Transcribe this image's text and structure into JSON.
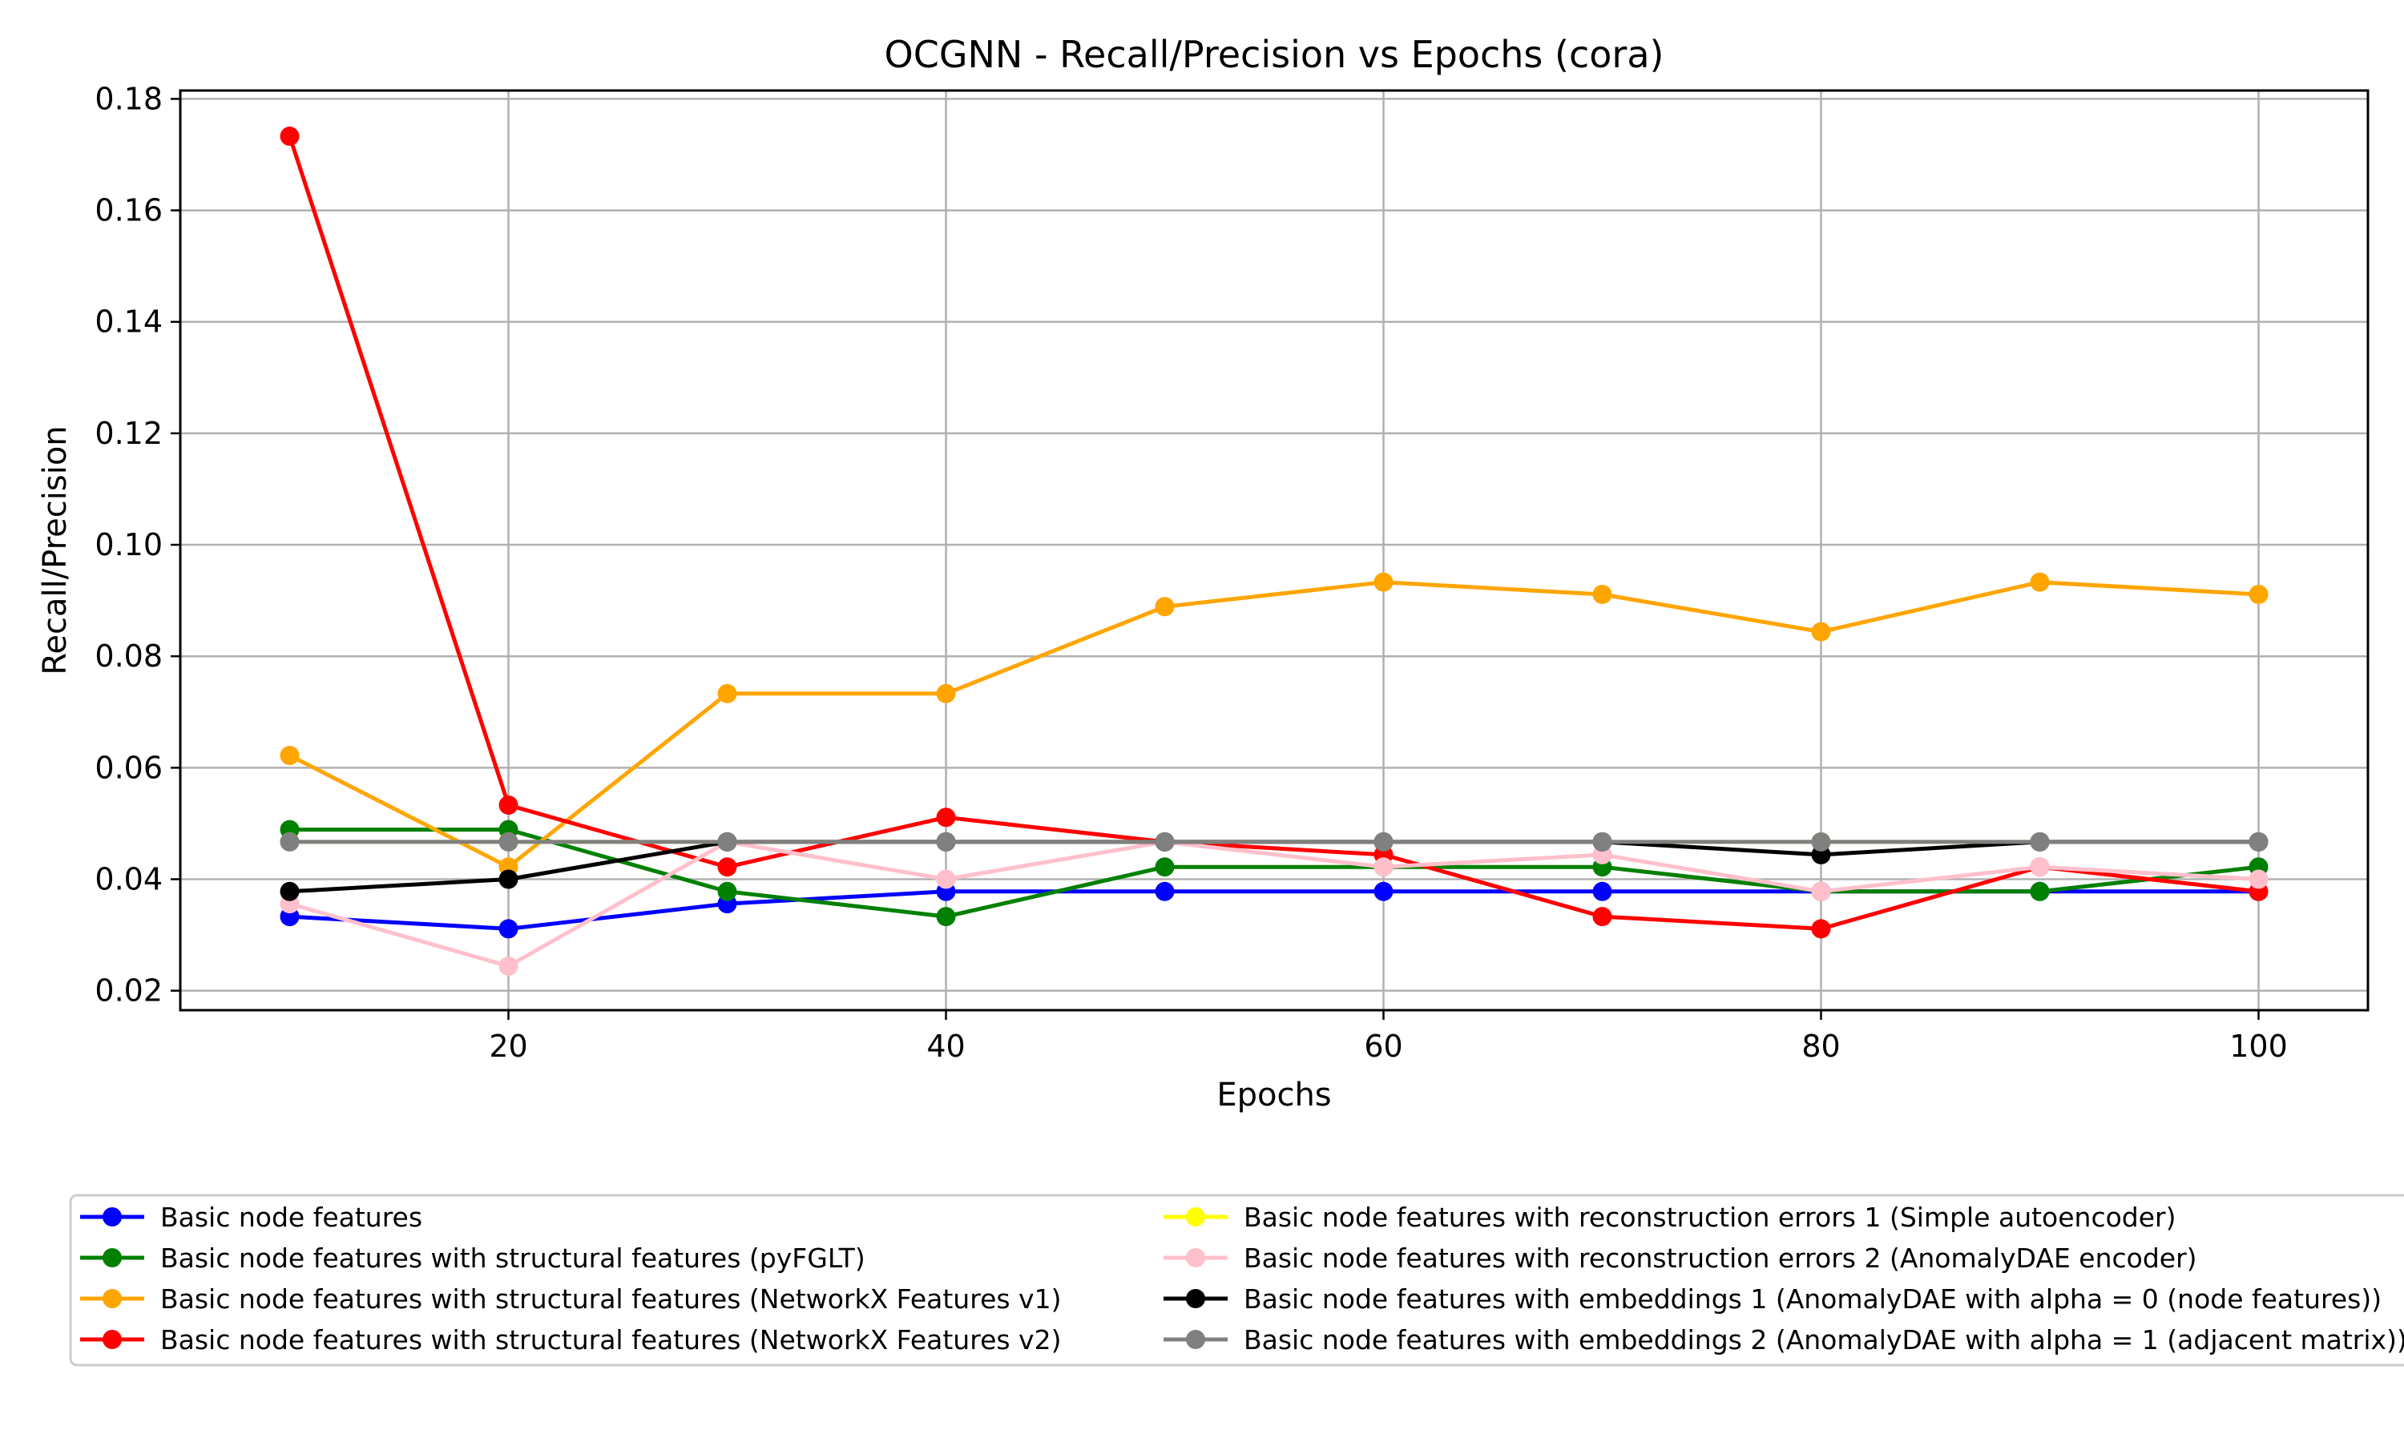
{
  "chart_data": {
    "type": "line",
    "title": "OCGNN - Recall/Precision vs Epochs (cora)",
    "xlabel": "Epochs",
    "ylabel": "Recall/Precision",
    "xlim": [
      5,
      105
    ],
    "ylim": [
      0.0165,
      0.1815
    ],
    "xticks": [
      20,
      40,
      60,
      80,
      100
    ],
    "yticks": [
      0.02,
      0.04,
      0.06,
      0.08,
      0.1,
      0.12,
      0.14,
      0.16,
      0.18
    ],
    "xtick_labels": [
      "20",
      "40",
      "60",
      "80",
      "100"
    ],
    "ytick_labels": [
      "0.02",
      "0.04",
      "0.06",
      "0.08",
      "0.10",
      "0.12",
      "0.14",
      "0.16",
      "0.18"
    ],
    "grid": true,
    "legend_placement": "below the plot, two columns",
    "x": [
      10,
      20,
      30,
      40,
      50,
      60,
      70,
      80,
      90,
      100
    ],
    "series": [
      {
        "name": "Basic node features",
        "color": "#0000ff",
        "values": [
          0.0333,
          0.0311,
          0.0356,
          0.0378,
          0.0378,
          0.0378,
          0.0378,
          0.0378,
          0.0378,
          0.0378
        ]
      },
      {
        "name": "Basic node features with structural features (pyFGLT)",
        "color": "#008000",
        "values": [
          0.0489,
          0.0489,
          0.0378,
          0.0333,
          0.0422,
          0.0422,
          0.0422,
          0.0378,
          0.0378,
          0.0422
        ]
      },
      {
        "name": "Basic node features with structural features (NetworkX Features v1)",
        "color": "#ffa500",
        "values": [
          0.0622,
          0.0422,
          0.0733,
          0.0733,
          0.0889,
          0.0933,
          0.0911,
          0.0844,
          0.0933,
          0.0911
        ]
      },
      {
        "name": "Basic node features with structural features (NetworkX Features v2)",
        "color": "#ff0000",
        "values": [
          0.1733,
          0.0533,
          0.0422,
          0.0511,
          0.0467,
          0.0444,
          0.0333,
          0.0311,
          0.0422,
          0.0378
        ]
      },
      {
        "name": "Basic node features with reconstruction errors 1 (Simple autoencoder)",
        "color": "#ffff00",
        "values": [
          0.0467,
          0.0467,
          0.0467,
          0.0467,
          0.0467,
          0.0467,
          0.0467,
          0.0467,
          0.0467,
          0.0467
        ]
      },
      {
        "name": "Basic node features with reconstruction errors 2 (AnomalyDAE encoder)",
        "color": "#ffc0cb",
        "values": [
          0.0356,
          0.0244,
          0.0467,
          0.04,
          0.0467,
          0.0422,
          0.0444,
          0.0378,
          0.0422,
          0.04
        ]
      },
      {
        "name": "Basic node features with embeddings 1 (AnomalyDAE with alpha = 0 (node features))",
        "color": "#000000",
        "values": [
          0.0378,
          0.04,
          0.0467,
          0.0467,
          0.0467,
          0.0467,
          0.0467,
          0.0444,
          0.0467,
          0.0467
        ]
      },
      {
        "name": "Basic node features with embeddings 2 (AnomalyDAE with alpha = 1 (adjacent matrix))",
        "color": "#808080",
        "values": [
          0.0467,
          0.0467,
          0.0467,
          0.0467,
          0.0467,
          0.0467,
          0.0467,
          0.0467,
          0.0467,
          0.0467
        ]
      }
    ]
  }
}
